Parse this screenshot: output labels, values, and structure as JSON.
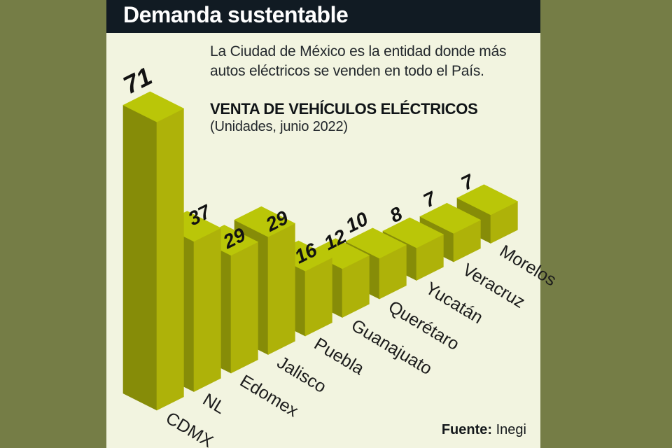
{
  "frame": {
    "border_color": "#757d46",
    "content_background": "#f2f4e0"
  },
  "header": {
    "title": "Demanda sustentable",
    "background": "#111b23",
    "text_color": "#ffffff"
  },
  "intro": {
    "line1": "La Ciudad de México es la entidad donde más",
    "line2": "autos eléctricos se venden en todo el País."
  },
  "chart_data": {
    "type": "bar",
    "style": "isometric-3d-columns",
    "title": "VENTA DE VEHÍCULOS ELÉCTRICOS",
    "subtitle": "(Unidades, junio 2022)",
    "categories": [
      "CDMX",
      "NL",
      "Edomex",
      "Jalisco",
      "Puebla",
      "Guanajuato",
      "Querétaro",
      "Yucatán",
      "Veracruz",
      "Morelos"
    ],
    "values": [
      71,
      37,
      29,
      29,
      16,
      12,
      10,
      8,
      7,
      7
    ],
    "layout_hint": "columns arranged along ascending diagonal from front-left (largest) to back-right (smallest), value labels above tops, category labels at bases",
    "colors": {
      "top_face": "#bac608",
      "front_face": "#aeb209",
      "left_face": "#868c08",
      "value_label": "#121212",
      "category_label": "#1c1c1c"
    }
  },
  "source": {
    "label": "Fuente:",
    "value": "Inegi"
  }
}
